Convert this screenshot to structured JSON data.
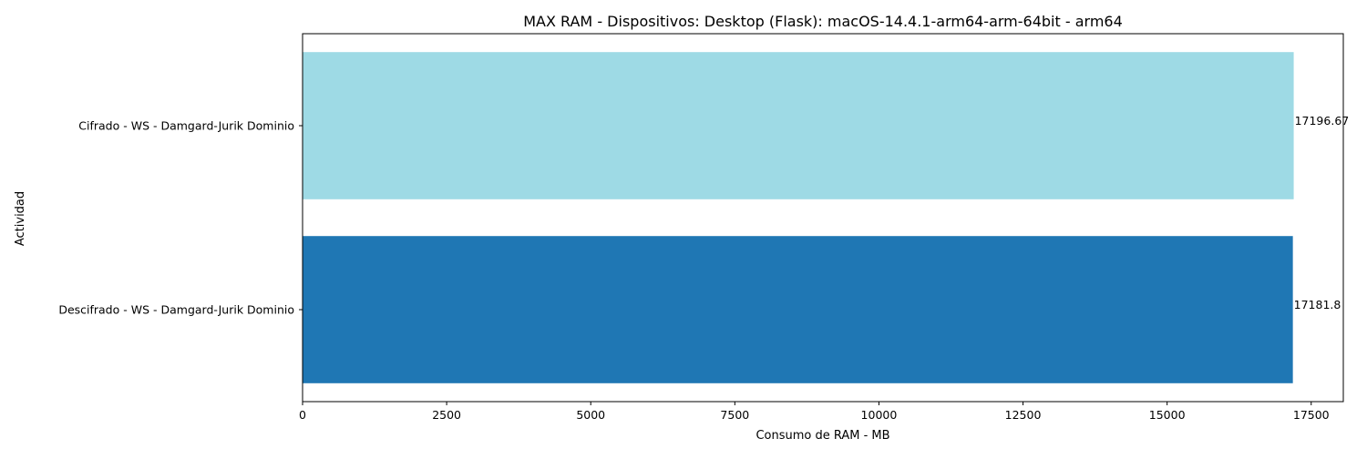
{
  "chart_data": {
    "type": "bar",
    "orientation": "horizontal",
    "title": "MAX RAM - Dispositivos: Desktop (Flask): macOS-14.4.1-arm64-arm-64bit - arm64",
    "xlabel": "Consumo de RAM - MB",
    "ylabel": "Actividad",
    "categories": [
      "Descifrado - WS - Damgard-Jurik Dominio",
      "Cifrado - WS - Damgard-Jurik Dominio"
    ],
    "values": [
      17181.8,
      17196.67
    ],
    "value_labels": [
      "17181.8",
      "17196.67"
    ],
    "bar_colors": [
      "#1f77b4",
      "#9edae5"
    ],
    "xlim": [
      0,
      18057
    ],
    "xticks": [
      0,
      2500,
      5000,
      7500,
      10000,
      12500,
      15000,
      17500
    ],
    "xtick_labels": [
      "0",
      "2500",
      "5000",
      "7500",
      "10000",
      "12500",
      "15000",
      "17500"
    ],
    "grid": false,
    "legend": "none"
  }
}
